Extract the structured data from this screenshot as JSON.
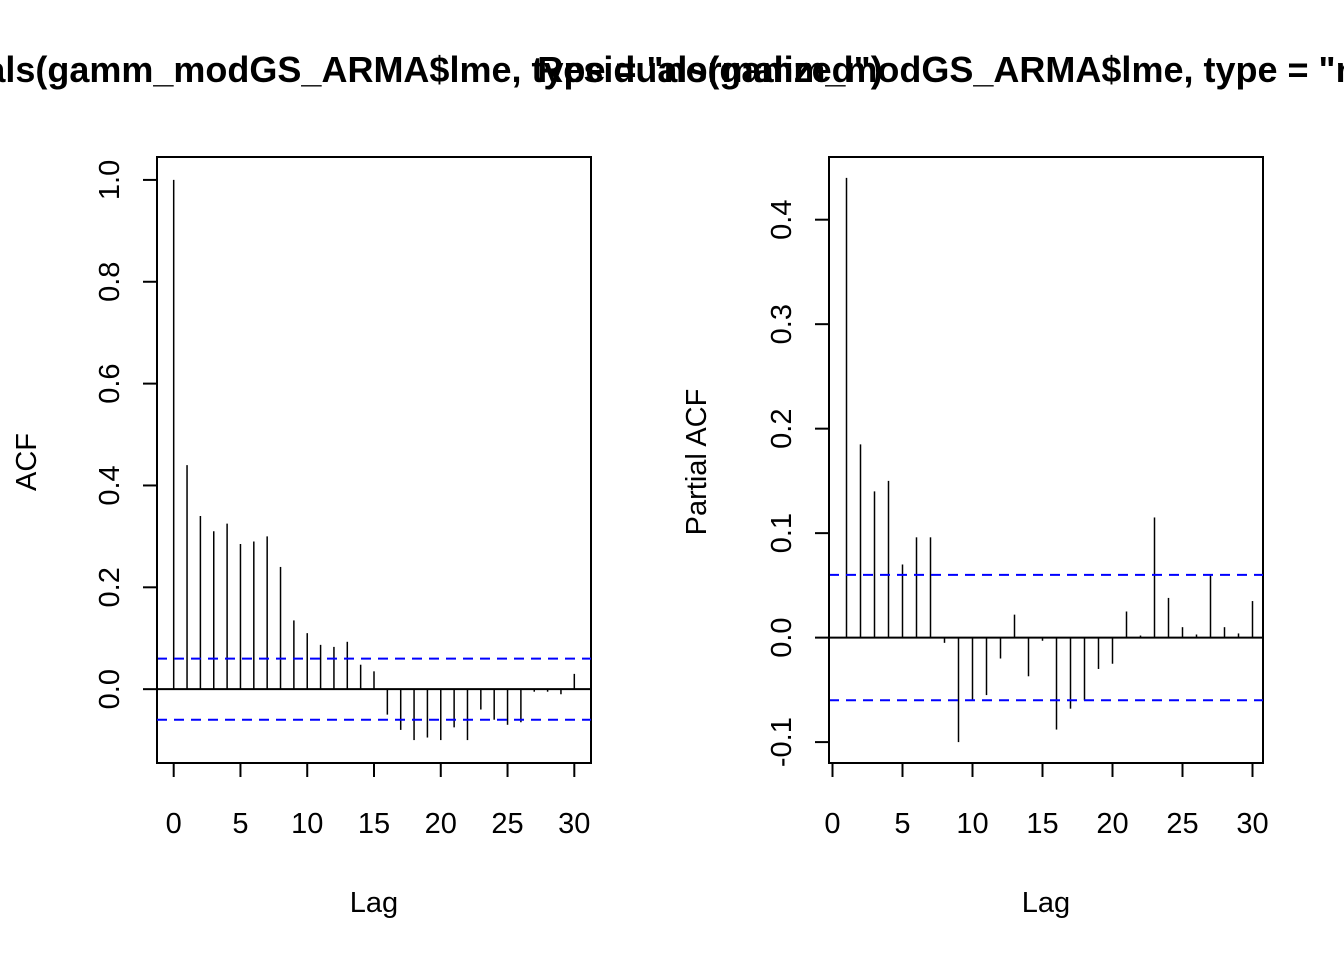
{
  "chart_data": [
    {
      "type": "bar",
      "title": "Residuals(gamm_modGS_ARMA$lme, type = \"normalized\")",
      "xlabel": "Lag",
      "ylabel": "ACF",
      "xlim": [
        -1.25,
        31.25
      ],
      "ylim": [
        -0.145,
        1.045
      ],
      "x_ticks": [
        "0",
        "5",
        "10",
        "15",
        "20",
        "25",
        "30"
      ],
      "y_ticks": [
        "0.0",
        "0.2",
        "0.4",
        "0.6",
        "0.8",
        "1.0"
      ],
      "confidence_band": 0.06,
      "colors": {
        "bars": "#000000",
        "band": "#0000ff"
      },
      "x": [
        0,
        1,
        2,
        3,
        4,
        5,
        6,
        7,
        8,
        9,
        10,
        11,
        12,
        13,
        14,
        15,
        16,
        17,
        18,
        19,
        20,
        21,
        22,
        23,
        24,
        25,
        26,
        27,
        28,
        29,
        30
      ],
      "values": [
        1.0,
        0.44,
        0.34,
        0.31,
        0.325,
        0.285,
        0.29,
        0.3,
        0.24,
        0.135,
        0.11,
        0.087,
        0.083,
        0.093,
        0.048,
        0.035,
        -0.05,
        -0.08,
        -0.1,
        -0.095,
        -0.1,
        -0.075,
        -0.1,
        -0.04,
        -0.06,
        -0.07,
        -0.065,
        -0.005,
        -0.005,
        -0.01,
        0.03
      ]
    },
    {
      "type": "bar",
      "title": "Residuals(gamm_modGS_ARMA$lme, type = \"normalized\")",
      "xlabel": "Lag",
      "ylabel": "Partial ACF",
      "xlim": [
        -0.25,
        30.75
      ],
      "ylim": [
        -0.12,
        0.46
      ],
      "x_ticks": [
        "0",
        "5",
        "10",
        "15",
        "20",
        "25",
        "30"
      ],
      "y_ticks": [
        "-0.1",
        "0.0",
        "0.1",
        "0.2",
        "0.3",
        "0.4"
      ],
      "confidence_band": 0.06,
      "colors": {
        "bars": "#000000",
        "band": "#0000ff"
      },
      "x": [
        1,
        2,
        3,
        4,
        5,
        6,
        7,
        8,
        9,
        10,
        11,
        12,
        13,
        14,
        15,
        16,
        17,
        18,
        19,
        20,
        21,
        22,
        23,
        24,
        25,
        26,
        27,
        28,
        29,
        30
      ],
      "values": [
        0.44,
        0.185,
        0.14,
        0.15,
        0.07,
        0.096,
        0.096,
        -0.005,
        -0.1,
        -0.06,
        -0.055,
        -0.02,
        0.022,
        -0.037,
        -0.003,
        -0.088,
        -0.068,
        -0.06,
        -0.03,
        -0.025,
        0.025,
        0.002,
        0.115,
        0.038,
        0.01,
        0.003,
        0.06,
        0.01,
        0.004,
        0.035
      ]
    }
  ]
}
